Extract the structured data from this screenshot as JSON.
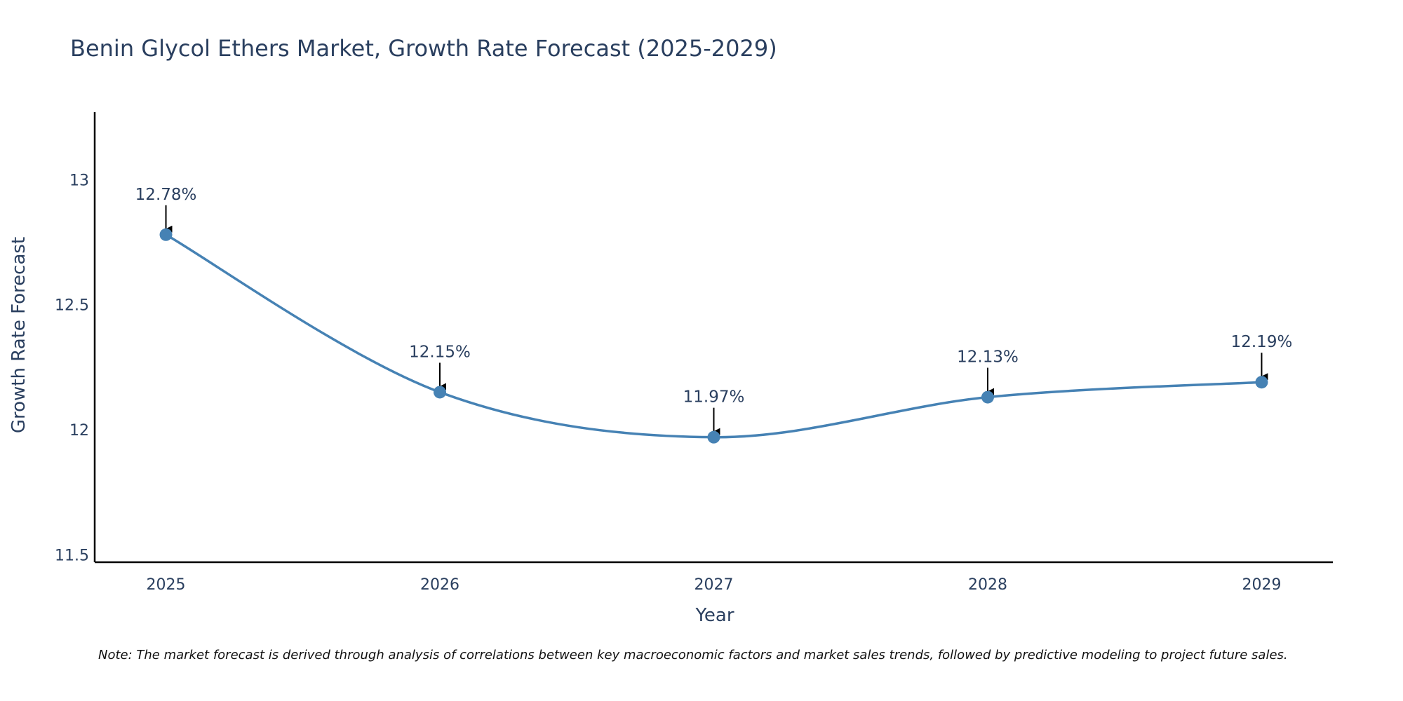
{
  "chart_data": {
    "type": "line",
    "title": "Benin Glycol Ethers Market, Growth Rate Forecast (2025-2029)",
    "xlabel": "Year",
    "ylabel": "Growth Rate Forecast",
    "categories": [
      "2025",
      "2026",
      "2027",
      "2028",
      "2029"
    ],
    "x": [
      2025,
      2026,
      2027,
      2028,
      2029
    ],
    "values": [
      12.78,
      12.15,
      11.97,
      12.13,
      12.19
    ],
    "data_labels": [
      "12.78%",
      "12.15%",
      "11.97%",
      "12.13%",
      "12.19%"
    ],
    "ylim": [
      11.47,
      13.27
    ],
    "xlim": [
      2024.74,
      2029.26
    ],
    "yticks": [
      11.5,
      12,
      12.5,
      13
    ],
    "ytick_labels": [
      "11.5",
      "12",
      "12.5",
      "13"
    ],
    "line_color": "#4682b4",
    "marker_color": "#4682b4",
    "grid": false,
    "note": "Note: The market forecast is derived through analysis of correlations between key macroeconomic factors and market sales trends, followed by predictive modeling to project future sales."
  }
}
